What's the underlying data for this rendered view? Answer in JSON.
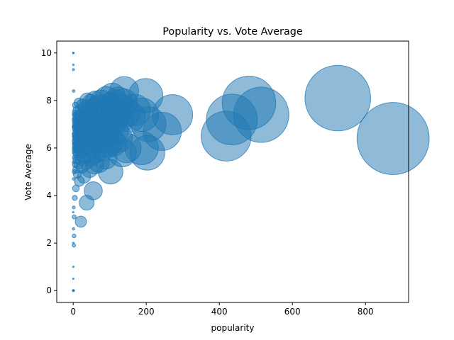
{
  "chart_data": {
    "type": "scatter",
    "title": "Popularity vs. Vote Average",
    "xlabel": "popularity",
    "ylabel": "Vote Average",
    "xlim": [
      -45,
      918
    ],
    "ylim": [
      -0.5,
      10.5
    ],
    "xticks": [
      0,
      200,
      400,
      600,
      800
    ],
    "yticks": [
      0,
      2,
      4,
      6,
      8,
      10
    ],
    "grid": false,
    "color": "#1f77b4",
    "alpha": 0.5,
    "size_encoding": "popularity",
    "points": [
      [
        875.6,
        6.4
      ],
      [
        724.2,
        8.1
      ],
      [
        514.6,
        7.4
      ],
      [
        481.1,
        7.9
      ],
      [
        434.3,
        7.2
      ],
      [
        418.7,
        6.5
      ],
      [
        271.9,
        7.4
      ],
      [
        243.8,
        6.7
      ],
      [
        206.2,
        7.0
      ],
      [
        203.0,
        5.8
      ],
      [
        198.4,
        8.2
      ],
      [
        187.9,
        7.4
      ],
      [
        187.3,
        6.0
      ],
      [
        167.9,
        7.6
      ],
      [
        155.8,
        7.3
      ],
      [
        145.8,
        6.0
      ],
      [
        143.0,
        7.5
      ],
      [
        139.6,
        8.4
      ],
      [
        137.1,
        7.9
      ],
      [
        134.3,
        5.8
      ],
      [
        128.7,
        7.7
      ],
      [
        127.5,
        7.2
      ],
      [
        125.1,
        6.4
      ],
      [
        123.6,
        8.0
      ],
      [
        120.0,
        7.4
      ],
      [
        115.7,
        6.7
      ],
      [
        115.0,
        7.9
      ],
      [
        112.3,
        7.1
      ],
      [
        110.6,
        6.2
      ],
      [
        108.8,
        7.6
      ],
      [
        107.1,
        8.2
      ],
      [
        105.3,
        6.3
      ],
      [
        103.2,
        7.3
      ],
      [
        102.3,
        5.0
      ],
      [
        100.0,
        6.9
      ],
      [
        98.9,
        7.8
      ],
      [
        96.4,
        6.1
      ],
      [
        95.0,
        7.3
      ],
      [
        93.0,
        6.6
      ],
      [
        90.2,
        8.1
      ],
      [
        88.7,
        5.6
      ],
      [
        86.6,
        7.1
      ],
      [
        85.0,
        6.3
      ],
      [
        82.5,
        7.7
      ],
      [
        80.9,
        6.8
      ],
      [
        79.0,
        5.9
      ],
      [
        77.4,
        7.4
      ],
      [
        75.7,
        8.0
      ],
      [
        74.4,
        6.5
      ],
      [
        72.7,
        7.2
      ],
      [
        71.0,
        5.4
      ],
      [
        69.6,
        6.9
      ],
      [
        68.3,
        7.8
      ],
      [
        66.8,
        6.2
      ],
      [
        65.1,
        7.5
      ],
      [
        63.9,
        5.8
      ],
      [
        62.5,
        7.0
      ],
      [
        61.2,
        6.6
      ],
      [
        60.0,
        8.0
      ],
      [
        58.6,
        5.3
      ],
      [
        57.3,
        7.3
      ],
      [
        56.0,
        6.4
      ],
      [
        55.0,
        4.2
      ],
      [
        54.1,
        7.7
      ],
      [
        52.9,
        6.0
      ],
      [
        51.7,
        7.1
      ],
      [
        50.5,
        5.6
      ],
      [
        49.4,
        6.8
      ],
      [
        48.3,
        7.9
      ],
      [
        47.2,
        6.3
      ],
      [
        46.1,
        7.4
      ],
      [
        45.0,
        5.1
      ],
      [
        44.0,
        6.7
      ],
      [
        43.0,
        7.6
      ],
      [
        42.1,
        6.1
      ],
      [
        41.2,
        7.2
      ],
      [
        40.3,
        5.7
      ],
      [
        39.4,
        6.9
      ],
      [
        38.6,
        8.0
      ],
      [
        37.8,
        6.4
      ],
      [
        37.0,
        3.7
      ],
      [
        36.2,
        7.3
      ],
      [
        35.4,
        5.4
      ],
      [
        34.6,
        6.8
      ],
      [
        33.8,
        7.7
      ],
      [
        33.0,
        6.2
      ],
      [
        32.3,
        7.0
      ],
      [
        31.6,
        5.9
      ],
      [
        30.9,
        6.6
      ],
      [
        30.2,
        7.5
      ],
      [
        29.5,
        4.8
      ],
      [
        28.8,
        6.3
      ],
      [
        28.1,
        7.2
      ],
      [
        27.5,
        5.6
      ],
      [
        26.9,
        6.9
      ],
      [
        26.2,
        7.8
      ],
      [
        25.6,
        6.1
      ],
      [
        25.0,
        6.7
      ],
      [
        24.4,
        5.2
      ],
      [
        23.8,
        7.4
      ],
      [
        23.2,
        6.4
      ],
      [
        22.7,
        7.0
      ],
      [
        22.1,
        5.8
      ],
      [
        21.6,
        6.6
      ],
      [
        21.0,
        2.9
      ],
      [
        20.5,
        7.6
      ],
      [
        20.0,
        6.2
      ],
      [
        19.5,
        6.9
      ],
      [
        19.0,
        5.5
      ],
      [
        18.5,
        7.3
      ],
      [
        18.0,
        6.0
      ],
      [
        17.5,
        6.7
      ],
      [
        17.0,
        4.6
      ],
      [
        16.5,
        7.1
      ],
      [
        16.1,
        5.9
      ],
      [
        15.6,
        6.5
      ],
      [
        15.2,
        7.9
      ],
      [
        14.7,
        6.3
      ],
      [
        14.3,
        5.3
      ],
      [
        13.9,
        7.0
      ],
      [
        13.4,
        6.1
      ],
      [
        13.0,
        6.8
      ],
      [
        12.6,
        5.7
      ],
      [
        12.2,
        7.4
      ],
      [
        11.8,
        6.4
      ],
      [
        11.4,
        4.9
      ],
      [
        11.0,
        7.2
      ],
      [
        10.6,
        6.0
      ],
      [
        10.3,
        6.7
      ],
      [
        9.9,
        5.5
      ],
      [
        9.5,
        7.6
      ],
      [
        9.2,
        6.2
      ],
      [
        8.8,
        6.9
      ],
      [
        8.5,
        5.1
      ],
      [
        8.1,
        7.3
      ],
      [
        7.8,
        6.6
      ],
      [
        7.5,
        4.3
      ],
      [
        7.2,
        7.0
      ],
      [
        6.9,
        5.8
      ],
      [
        6.6,
        6.4
      ],
      [
        6.3,
        7.8
      ],
      [
        6.0,
        6.1
      ],
      [
        5.7,
        5.3
      ],
      [
        5.4,
        6.8
      ],
      [
        5.2,
        7.1
      ],
      [
        4.9,
        5.6
      ],
      [
        4.6,
        6.5
      ],
      [
        4.4,
        3.9
      ],
      [
        4.1,
        7.5
      ],
      [
        3.9,
        6.0
      ],
      [
        3.6,
        6.9
      ],
      [
        3.4,
        5.0
      ],
      [
        3.2,
        7.2
      ],
      [
        3.0,
        6.3
      ],
      [
        2.8,
        3.1
      ],
      [
        2.6,
        5.9
      ],
      [
        2.4,
        2.3
      ],
      [
        2.2,
        6.6
      ],
      [
        2.0,
        1.9
      ],
      [
        1.9,
        7.4
      ],
      [
        1.7,
        5.4
      ],
      [
        1.5,
        3.5
      ],
      [
        1.4,
        6.2
      ],
      [
        1.2,
        8.4
      ],
      [
        1.1,
        4.7
      ],
      [
        1.0,
        2.6
      ],
      [
        0.9,
        6.9
      ],
      [
        0.8,
        0.0
      ],
      [
        0.7,
        9.3
      ],
      [
        0.6,
        5.8
      ],
      [
        0.5,
        2.0
      ],
      [
        0.45,
        9.5
      ],
      [
        0.4,
        10.0
      ],
      [
        0.35,
        0.5
      ],
      [
        0.3,
        1.0
      ],
      [
        0.25,
        10.0
      ],
      [
        0.2,
        0.0
      ],
      [
        0.15,
        3.3
      ],
      [
        0.1,
        6.5
      ],
      [
        0.05,
        0.0
      ]
    ]
  }
}
